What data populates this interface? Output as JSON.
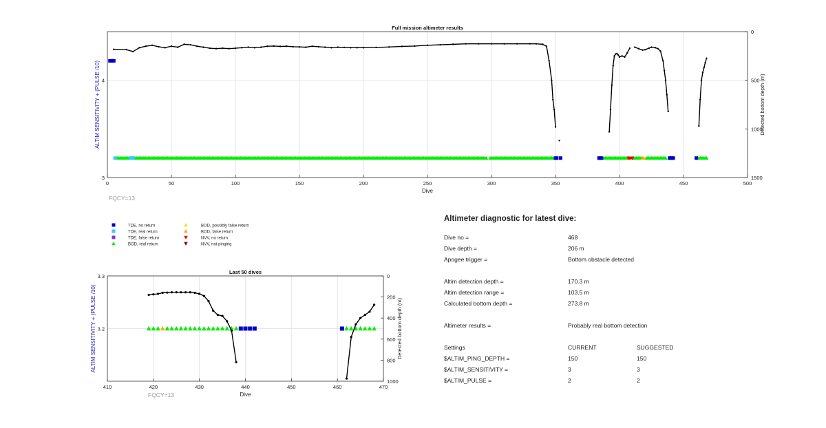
{
  "chart_data": [
    {
      "type": "scatter",
      "title": "Full mission altimeter results",
      "xlabel": "Dive",
      "ylabel_left": "ALTIM SENSITIVITY + (PULSE /10)",
      "ylabel_right": "Detected bottom depth (m)",
      "xlim": [
        0,
        500
      ],
      "ylim_left": [
        3,
        4.5
      ],
      "ylim_right": [
        0,
        1500
      ],
      "right_axis_reversed": true,
      "xticks": [
        "0",
        "50",
        "100",
        "150",
        "200",
        "250",
        "300",
        "350",
        "400",
        "450",
        "500"
      ],
      "yticks_left": [
        "3",
        "4"
      ],
      "yticks_right": [
        "0",
        "500",
        "1000",
        "1500"
      ],
      "grid": true,
      "annotation": "FQCY=13",
      "series": [
        {
          "name": "Detected bottom depth",
          "color": "#000000",
          "axis": "right",
          "segments": [
            {
              "x": [
                5,
                15,
                20,
                25,
                30,
                35,
                40,
                45,
                50,
                55,
                60,
                65,
                70,
                75,
                80,
                85,
                90,
                95,
                100,
                105,
                110,
                115,
                120,
                125,
                130,
                135,
                140,
                145,
                150,
                155,
                160,
                165,
                170,
                175,
                180,
                185,
                190,
                195,
                200,
                210,
                220,
                230,
                240,
                250,
                260,
                270,
                280,
                290,
                300,
                310,
                320,
                330,
                335,
                340,
                343,
                345,
                347,
                348,
                349,
                350
              ],
              "y": [
                182,
                185,
                205,
                165,
                150,
                140,
                155,
                165,
                150,
                160,
                130,
                135,
                150,
                160,
                170,
                175,
                170,
                175,
                170,
                165,
                160,
                165,
                160,
                150,
                148,
                152,
                150,
                155,
                157,
                160,
                150,
                155,
                160,
                165,
                160,
                162,
                165,
                165,
                165,
                162,
                158,
                152,
                148,
                140,
                135,
                130,
                125,
                125,
                125,
                125,
                125,
                125,
                125,
                130,
                150,
                300,
                500,
                700,
                800,
                980
              ]
            },
            {
              "x": [
                353
              ],
              "y": [
                1120
              ]
            },
            {
              "x": [
                392,
                393,
                394,
                395,
                396,
                397,
                398,
                399,
                400,
                402,
                404,
                406,
                408
              ],
              "y": [
                1030,
                800,
                550,
                350,
                250,
                230,
                225,
                240,
                260,
                250,
                260,
                220,
                170
              ]
            },
            {
              "x": [
                412,
                415,
                418,
                420,
                423,
                425,
                428,
                430,
                432,
                434,
                435,
                436,
                437,
                438
              ],
              "y": [
                160,
                175,
                190,
                185,
                170,
                160,
                165,
                175,
                200,
                300,
                400,
                500,
                650,
                820
              ]
            },
            {
              "x": [
                462,
                463,
                464,
                465,
                466,
                467,
                468
              ],
              "y": [
                970,
                700,
                500,
                420,
                370,
                320,
                273.8
              ]
            }
          ]
        },
        {
          "name": "BOD, real return",
          "color": "#00ee00",
          "axis": "left",
          "y": 3.2,
          "x_ranges": [
            [
              7,
              296
            ],
            [
              299,
              348
            ],
            [
              388,
              407
            ],
            [
              411,
              417
            ],
            [
              421,
              436
            ],
            [
              461,
              468
            ]
          ]
        },
        {
          "name": "TDE, real return",
          "color": "#33ccff",
          "axis": "left",
          "y": 3.2,
          "x": [
            6,
            18,
            19,
            20
          ]
        },
        {
          "name": "TDE, no return",
          "color": "#0000cc",
          "axis": "left",
          "x": [
            2,
            3,
            4,
            5
          ],
          "y": 4.2
        },
        {
          "name": "TDE, no return",
          "color": "#0000cc",
          "axis": "left",
          "y": 3.2,
          "x": [
            350,
            351,
            354,
            384,
            385,
            386,
            439,
            440,
            441,
            442,
            460
          ]
        },
        {
          "name": "NVV, no return",
          "color": "#ee0000",
          "axis": "left",
          "y": 3.2,
          "x": [
            407,
            408,
            409,
            410
          ]
        },
        {
          "name": "BOD, false return",
          "color": "#ffaa00",
          "axis": "left",
          "y": 3.2,
          "x": [
            418,
            419
          ]
        }
      ]
    },
    {
      "type": "scatter",
      "title": "Last 50 dives",
      "xlabel": "Dive",
      "ylabel_left": "ALTIM SENSITIVITY + (PULSE /10)",
      "ylabel_right": "Detected bottom depth (m)",
      "xlim": [
        410,
        470
      ],
      "ylim_left": [
        3.1,
        3.3
      ],
      "ylim_right": [
        0,
        1000
      ],
      "right_axis_reversed": true,
      "xticks": [
        "410",
        "420",
        "430",
        "440",
        "450",
        "460",
        "470"
      ],
      "yticks_left": [
        "3.2",
        "3.3"
      ],
      "yticks_right": [
        "0",
        "200",
        "400",
        "600",
        "800",
        "1000"
      ],
      "grid": true,
      "annotation": "FQCY=13",
      "series": [
        {
          "name": "Detected bottom depth",
          "color": "#000000",
          "axis": "right",
          "segments": [
            {
              "x": [
                419,
                420,
                421,
                422,
                423,
                424,
                425,
                426,
                427,
                428,
                429,
                430,
                431,
                432,
                433,
                434,
                435,
                436,
                437,
                438
              ],
              "y": [
                180,
                175,
                170,
                160,
                158,
                155,
                155,
                155,
                155,
                155,
                160,
                170,
                190,
                240,
                330,
                370,
                380,
                430,
                520,
                820
              ]
            },
            {
              "x": [
                462,
                463,
                464,
                465,
                466,
                467,
                468
              ],
              "y": [
                975,
                580,
                460,
                400,
                370,
                340,
                273.8
              ]
            }
          ]
        },
        {
          "name": "BOD, real return",
          "color": "#00ee00",
          "axis": "left",
          "y": 3.2,
          "x": [
            419,
            420,
            421,
            423,
            424,
            425,
            426,
            427,
            428,
            429,
            430,
            431,
            432,
            433,
            434,
            435,
            436,
            437,
            438,
            462,
            463,
            464,
            465,
            466,
            467,
            468
          ]
        },
        {
          "name": "BOD, false return",
          "color": "#ffaa00",
          "axis": "left",
          "y": 3.2,
          "x": [
            422
          ]
        },
        {
          "name": "TDE, no return",
          "color": "#0000cc",
          "axis": "left",
          "y": 3.2,
          "x": [
            439,
            440,
            441,
            442,
            461
          ]
        }
      ]
    }
  ],
  "legend": [
    {
      "label": "TDE, no return",
      "color": "#0000cc",
      "marker": "square"
    },
    {
      "label": "TDE, real return",
      "color": "#33ccff",
      "marker": "square"
    },
    {
      "label": "TDE, false return",
      "color": "#8833cc",
      "marker": "square"
    },
    {
      "label": "BOD, real return",
      "color": "#00ee00",
      "marker": "triangle-up"
    },
    {
      "label": "BOD, possibly false return",
      "color": "#ffdd00",
      "marker": "triangle-up"
    },
    {
      "label": "BOD, false return",
      "color": "#ffaa00",
      "marker": "triangle-up"
    },
    {
      "label": "NVV, no return",
      "color": "#ee0000",
      "marker": "triangle-down"
    },
    {
      "label": "NVV, not pinging",
      "color": "#990000",
      "marker": "triangle-down"
    }
  ],
  "diagnostic": {
    "title": "Altimeter diagnostic for latest dive:",
    "dive_no_label": "Dive no =",
    "dive_no": "468",
    "dive_depth_label": "Dive depth =",
    "dive_depth": "206 m",
    "apogee_label": "Apogee trigger =",
    "apogee": "Bottom obstacle detected",
    "det_depth_label": "Altim detection depth =",
    "det_depth": "170.3 m",
    "det_range_label": "Altim detection range =",
    "det_range": "103.5 m",
    "calc_depth_label": "Calculated bottom depth =",
    "calc_depth": "273.8 m",
    "results_label": "Altimeter results =",
    "results": "Probably real bottom detection",
    "settings_label": "Settings",
    "current_label": "CURRENT",
    "suggested_label": "SUGGESTED",
    "ping_label": "$ALTIM_PING_DEPTH =",
    "ping_current": "150",
    "ping_suggested": "150",
    "sens_label": "$ALTIM_SENSITIVITY =",
    "sens_current": "3",
    "sens_suggested": "3",
    "pulse_label": "$ALTIM_PULSE =",
    "pulse_current": "2",
    "pulse_suggested": "2"
  }
}
